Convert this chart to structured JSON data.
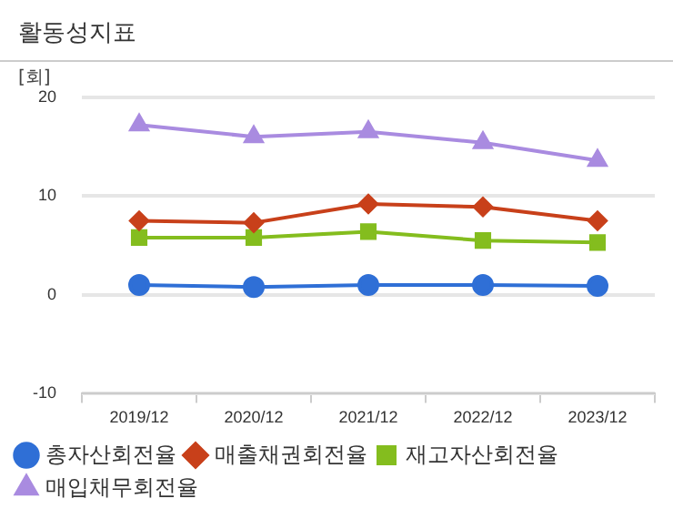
{
  "chart_data": {
    "type": "line",
    "title": "활동성지표",
    "ylabel": "[회]",
    "categories": [
      "2019/12",
      "2020/12",
      "2021/12",
      "2022/12",
      "2023/12"
    ],
    "series": [
      {
        "name": "총자산회전율",
        "color": "#2f6fd6",
        "marker": "circle",
        "values": [
          1.0,
          0.8,
          1.0,
          1.0,
          0.9
        ]
      },
      {
        "name": "매출채권회전율",
        "color": "#c8401a",
        "marker": "diamond",
        "values": [
          7.5,
          7.3,
          9.2,
          8.9,
          7.5
        ]
      },
      {
        "name": "재고자산회전율",
        "color": "#84bd1e",
        "marker": "square",
        "values": [
          5.8,
          5.8,
          6.4,
          5.5,
          5.3
        ]
      },
      {
        "name": "매입채무회전율",
        "color": "#a98be0",
        "marker": "triangle",
        "values": [
          17.2,
          16.0,
          16.5,
          15.4,
          13.6
        ]
      }
    ],
    "ylim": [
      -10,
      20
    ],
    "yticks": [
      -10,
      0,
      10,
      20
    ],
    "grid": "y",
    "legend": "bottom"
  }
}
